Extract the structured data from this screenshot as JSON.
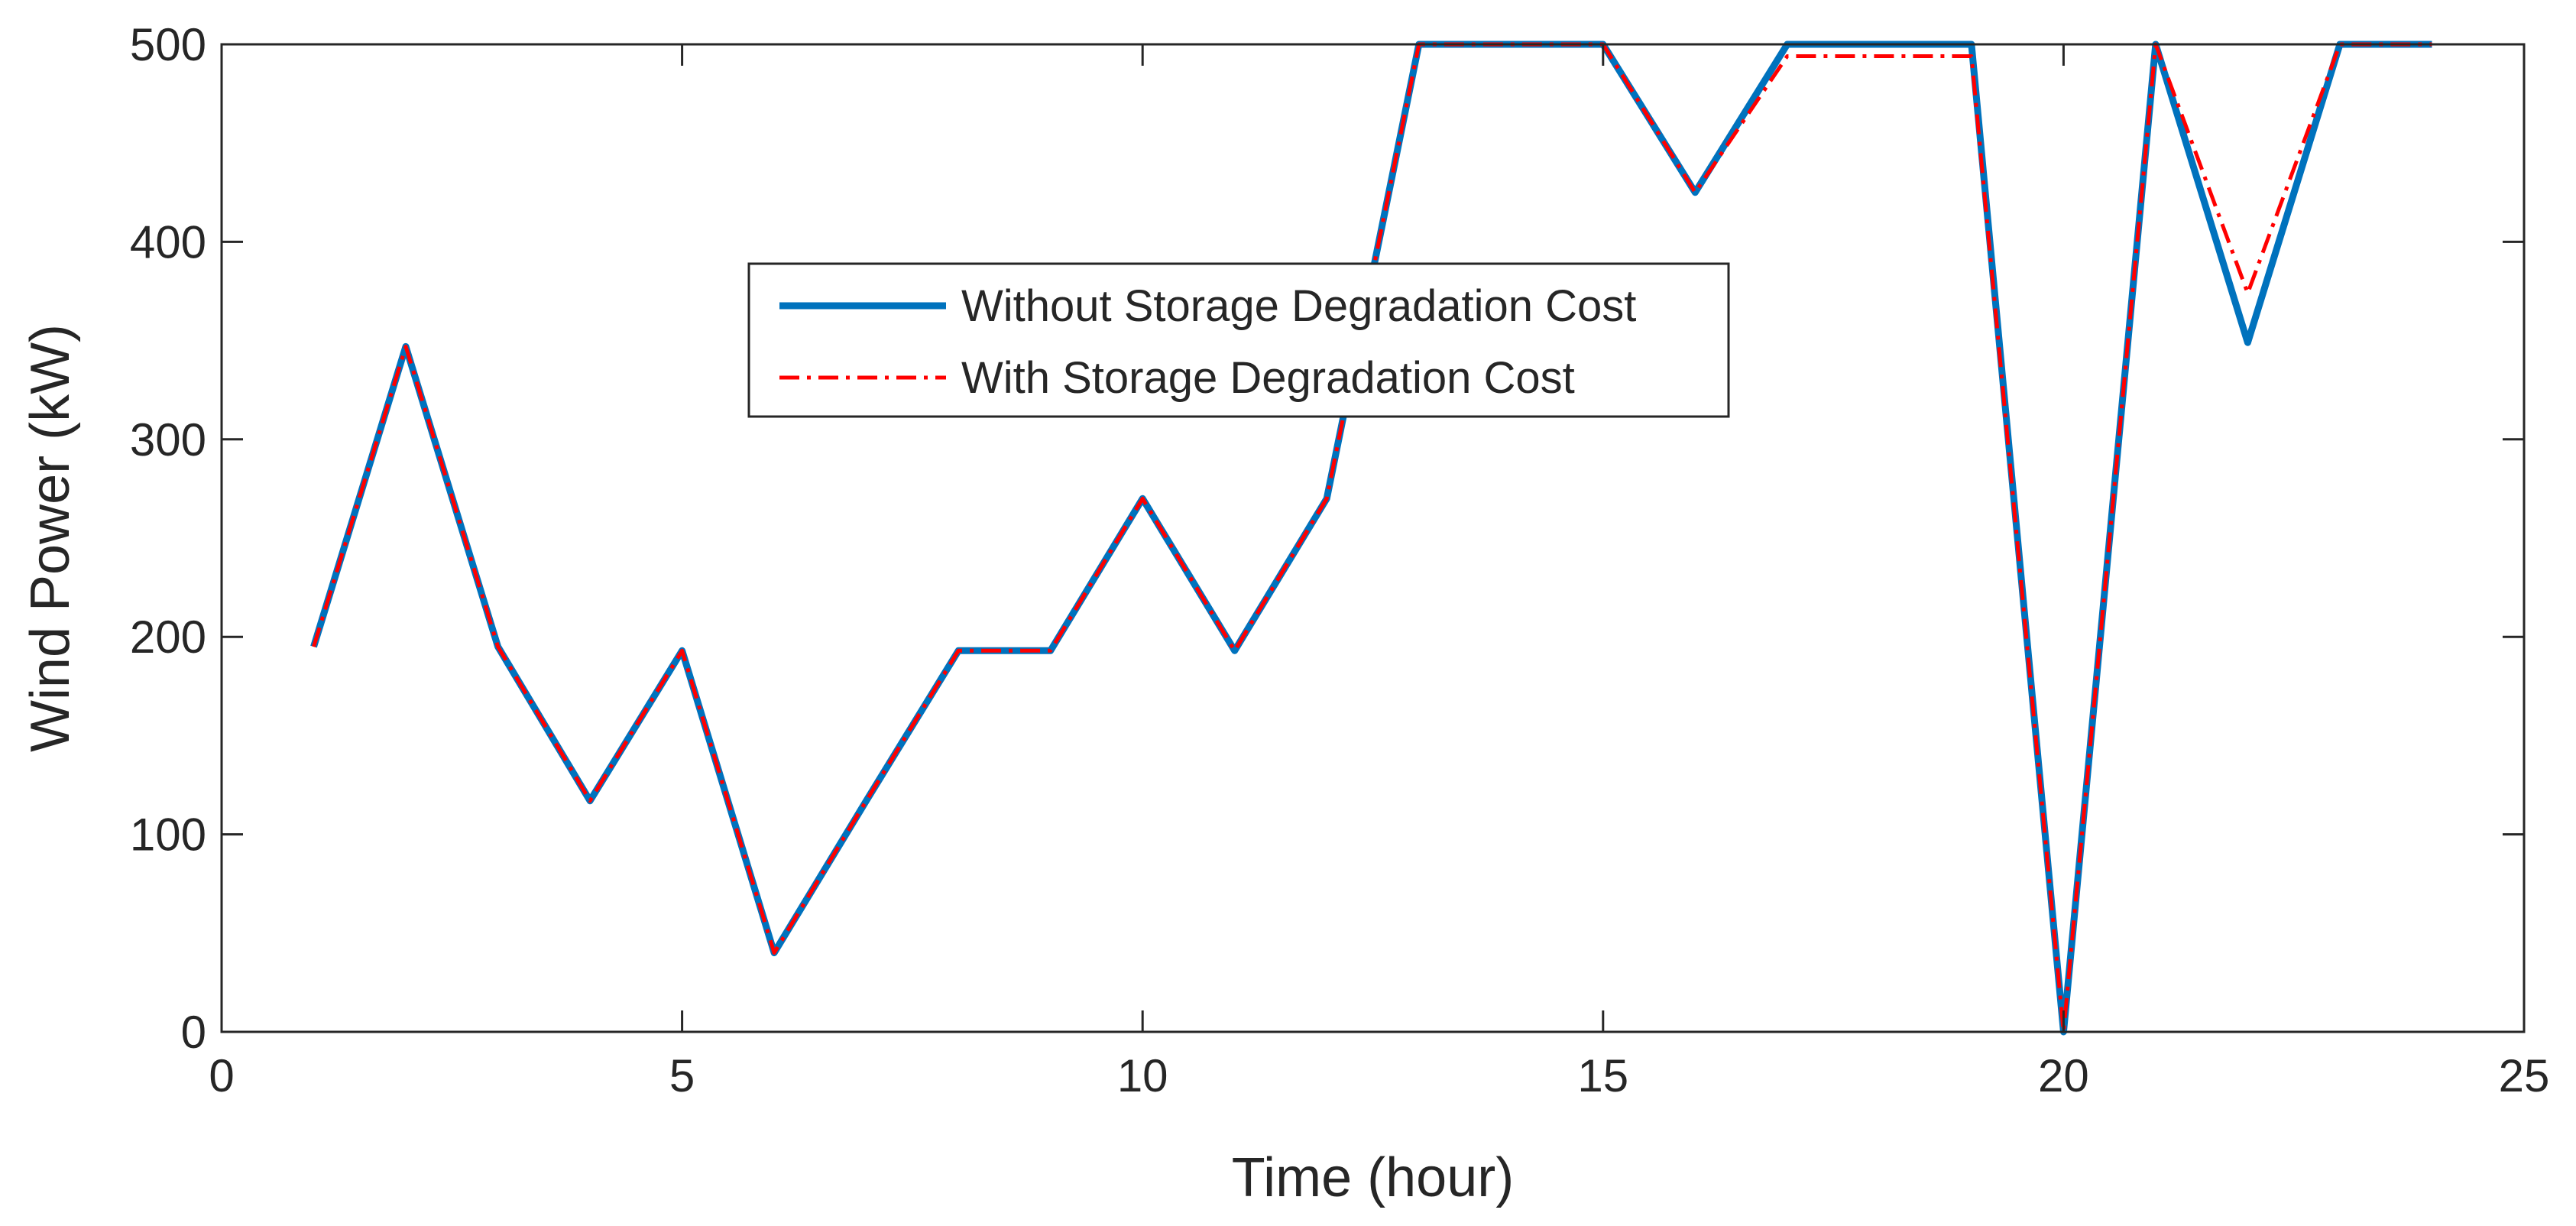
{
  "colors": {
    "axis": "#262626",
    "series_without": "#0072BD",
    "series_with": "#FF0000",
    "background": "#FFFFFF"
  },
  "chart_data": {
    "type": "line",
    "title": "",
    "xlabel": "Time (hour)",
    "ylabel": "Wind Power (kW)",
    "xlim": [
      0,
      25
    ],
    "ylim": [
      0,
      500
    ],
    "xticks": [
      0,
      5,
      10,
      15,
      20,
      25
    ],
    "yticks": [
      0,
      100,
      200,
      300,
      400,
      500
    ],
    "grid": false,
    "legend_position": "upper-center",
    "x": [
      1,
      2,
      3,
      4,
      5,
      6,
      7,
      8,
      9,
      10,
      11,
      12,
      13,
      14,
      15,
      16,
      17,
      18,
      19,
      20,
      21,
      22,
      23,
      24
    ],
    "series": [
      {
        "name": "Without Storage Degradation Cost",
        "color": "#0072BD",
        "style": "solid",
        "values": [
          195,
          347,
          195,
          117,
          193,
          40,
          117,
          193,
          193,
          270,
          193,
          270,
          500,
          500,
          500,
          425,
          500,
          500,
          500,
          0,
          500,
          349,
          500,
          500
        ]
      },
      {
        "name": "With Storage Degradation Cost",
        "color": "#FF0000",
        "style": "dashdot",
        "values": [
          195,
          347,
          195,
          117,
          193,
          40,
          117,
          193,
          193,
          270,
          193,
          270,
          500,
          500,
          500,
          425,
          494,
          494,
          494,
          0,
          500,
          374,
          500,
          500
        ]
      }
    ]
  }
}
